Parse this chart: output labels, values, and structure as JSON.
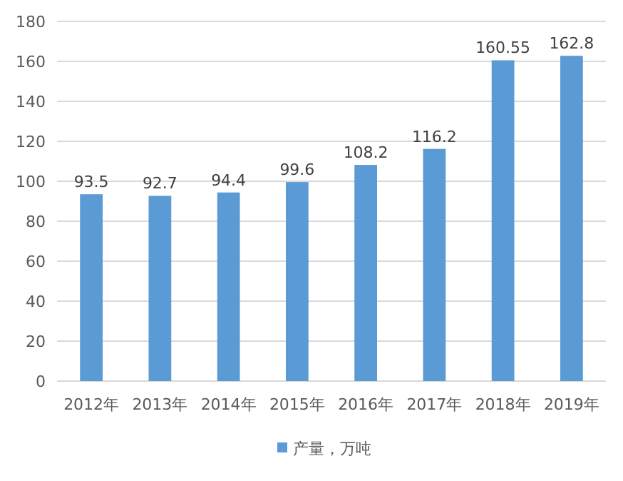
{
  "chart_data": {
    "type": "bar",
    "categories": [
      "2012年",
      "2013年",
      "2014年",
      "2015年",
      "2016年",
      "2017年",
      "2018年",
      "2019年"
    ],
    "series": [
      {
        "name": "产量，万吨",
        "color": "#5b9bd5",
        "values": [
          93.5,
          92.7,
          94.4,
          99.6,
          108.2,
          116.2,
          160.55,
          162.8
        ]
      }
    ],
    "ylim": [
      0,
      180
    ],
    "yticks": [
      0,
      20,
      40,
      60,
      80,
      100,
      120,
      140,
      160,
      180
    ],
    "grid": "y",
    "legend": "bottom",
    "data_labels": true
  }
}
